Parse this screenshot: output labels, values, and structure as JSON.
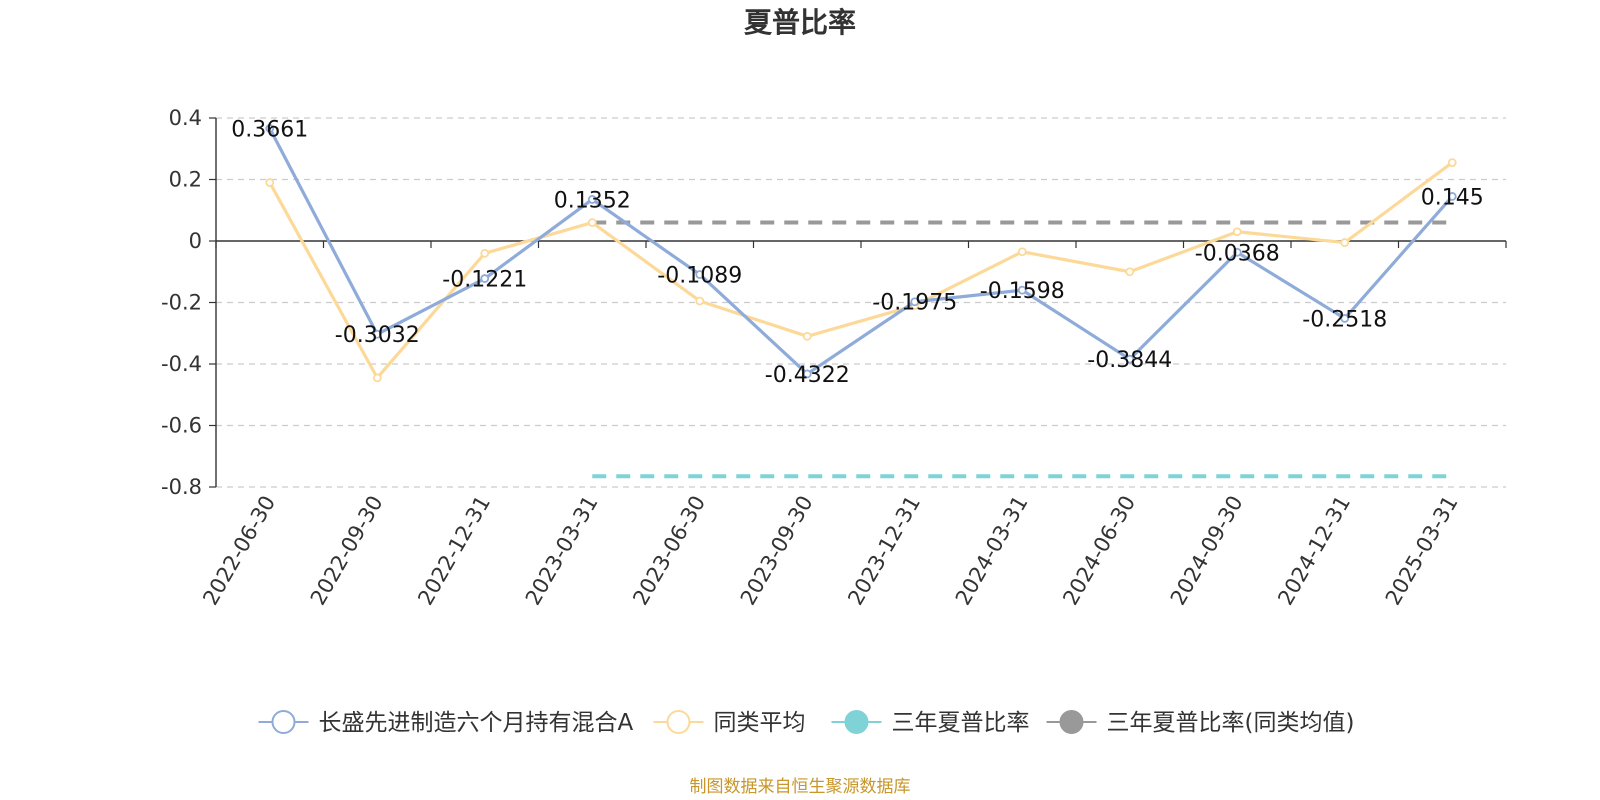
{
  "chart_data": {
    "type": "line",
    "title": "夏普比率",
    "xlabel": "",
    "ylabel": "",
    "ylim": [
      -0.8,
      0.4
    ],
    "yticks": [
      0.4,
      0.2,
      0,
      -0.2,
      -0.4,
      -0.6,
      -0.8
    ],
    "ytick_labels": [
      "0.4",
      "0.2",
      "0",
      "-0.2",
      "-0.4",
      "-0.6",
      "-0.8"
    ],
    "grid": true,
    "legend_position": "bottom",
    "categories": [
      "2022-06-30",
      "2022-09-30",
      "2022-12-31",
      "2023-03-31",
      "2023-06-30",
      "2023-09-30",
      "2023-12-31",
      "2024-03-31",
      "2024-06-30",
      "2024-09-30",
      "2024-12-31",
      "2025-03-31"
    ],
    "series": [
      {
        "name": "长盛先进制造六个月持有混合A",
        "color": "#8eabd9",
        "values": [
          0.3661,
          -0.3032,
          -0.1221,
          0.1352,
          -0.1089,
          -0.4322,
          -0.1975,
          -0.1598,
          -0.3844,
          -0.0368,
          -0.2518,
          0.145
        ],
        "labels": [
          "0.3661",
          "-0.3032",
          "-0.1221",
          "0.1352",
          "-0.1089",
          "-0.4322",
          "-0.1975",
          "-0.1598",
          "-0.3844",
          "-0.0368",
          "-0.2518",
          "0.145"
        ]
      },
      {
        "name": "同类平均",
        "color": "#fdd999",
        "values": [
          0.19,
          -0.445,
          -0.04,
          0.06,
          -0.195,
          -0.31,
          -0.21,
          -0.035,
          -0.1,
          0.03,
          -0.005,
          0.255
        ]
      },
      {
        "name": "三年夏普比率",
        "color": "#7fd3d6",
        "style": "dashed",
        "value": -0.765,
        "from_category": "2023-03-31",
        "to_category": "2025-03-31"
      },
      {
        "name": "三年夏普比率(同类均值)",
        "color": "#999999",
        "style": "dashed",
        "value": 0.06,
        "from_category": "2023-03-31",
        "to_category": "2025-03-31"
      }
    ]
  },
  "footer": {
    "source": "制图数据来自恒生聚源数据库"
  }
}
